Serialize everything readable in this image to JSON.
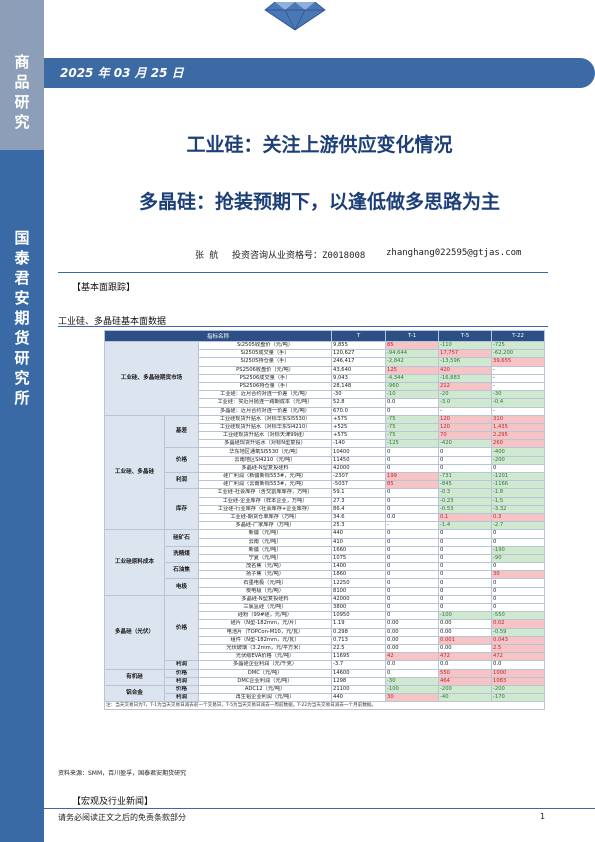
{
  "sidebar": {
    "top_label": "商品研究",
    "main_label": "国泰君安期货研究所"
  },
  "date": "2025 年 03 月 25 日",
  "titles": {
    "main": "工业硅：关注上游供应变化情况",
    "sub": "多晶硅：抢装预期下，以逢低做多思路为主"
  },
  "author": {
    "name": "张 航",
    "qualification": "投资咨询从业资格号：Z0018008",
    "email": "zhanghang022595@gtjas.com"
  },
  "sections": {
    "basics": "【基本面跟踪】",
    "table_caption": "工业硅、多晶硅基本面数据",
    "macro": "【宏观及行业新闻】"
  },
  "table": {
    "headers": [
      "指标名称",
      "T",
      "T-1",
      "T-5",
      "T-22"
    ],
    "rows": [
      {
        "g1": "工业硅、多晶硅期货市场",
        "g2": "",
        "name": "Si2505收盘价（元/吨）",
        "t": "9,855",
        "t1": "85",
        "t5": "-110",
        "t22": "-725"
      },
      {
        "name": "Si2505成交量（手）",
        "t": "120,627",
        "t1": "-94,644",
        "t5": "17,757",
        "t22": "-62,200"
      },
      {
        "name": "Si2505持仓量（手）",
        "t": "246,417",
        "t1": "-2,842",
        "t5": "-13,596",
        "t22": "39,655"
      },
      {
        "name": "PS2506收盘价（元/吨）",
        "t": "43,640",
        "t1": "125",
        "t5": "420",
        "t22": "-"
      },
      {
        "name": "PS2506成交量（手）",
        "t": "9,043",
        "t1": "-4,344",
        "t5": "-16,883",
        "t22": "-"
      },
      {
        "name": "PS2506持仓量（手）",
        "t": "28,148",
        "t1": "-960",
        "t5": "212",
        "t22": "-"
      },
      {
        "name": "工业硅：近月合约对连一价差（元/吨）",
        "t": "-30",
        "t1": "-10",
        "t5": "-20",
        "t22": "-30"
      },
      {
        "name": "工业硅：买近月抛连一跨期成本（元/吨）",
        "t": "52.8",
        "t1": "0.0",
        "t5": "-3.0",
        "t22": "-0.4"
      },
      {
        "name": "多晶硅：近月合约对连一价差（元/吨）",
        "t": "670.0",
        "t1": "0",
        "t5": "-",
        "t22": "-"
      },
      {
        "g1": "工业硅、多晶硅",
        "g2": "基差",
        "name": "工业硅现货升贴水（对标华东SI5530）",
        "t": "+575",
        "t1": "-75",
        "t5": "120",
        "t22": "310"
      },
      {
        "name": "工业硅现货升贴水（对标华东SI4210）",
        "t": "+525",
        "t1": "-75",
        "t5": "120",
        "t22": "1,435"
      },
      {
        "name": "工业硅现货升贴水（对标天津99硅）",
        "t": "+575",
        "t1": "-75",
        "t5": "70",
        "t22": "2,295"
      },
      {
        "name": "多晶硅现货升贴水（对标N型复投）",
        "t": "-140",
        "t1": "-125",
        "t5": "-420",
        "t22": "260"
      },
      {
        "g2": "价格",
        "name": "华东地区通氧SI5530（元/吨）",
        "t": "10400",
        "t1": "0",
        "t5": "0",
        "t22": "-400"
      },
      {
        "name": "云南地区SI4210（元/吨）",
        "t": "11450",
        "t1": "0",
        "t5": "0",
        "t22": "-200"
      },
      {
        "name": "多晶硅-N型复投硅料",
        "t": "42000",
        "t1": "0",
        "t5": "0",
        "t22": "0"
      },
      {
        "g2": "利润",
        "name": "硅厂利润（新疆新标553#，元/吨）",
        "t": "-2307",
        "t1": "199",
        "t5": "-731",
        "t22": "-1201"
      },
      {
        "name": "硅厂利润（云南新标553#，元/吨）",
        "t": "-5037",
        "t1": "85",
        "t5": "-845",
        "t22": "-1166"
      },
      {
        "g2": "库存",
        "name": "工业硅-社会库存（含交割库库存，万吨）",
        "t": "59.1",
        "t1": "0",
        "t5": "-0.3",
        "t22": "-1.8"
      },
      {
        "name": "工业硅-企业库存（样本企业，万吨）",
        "t": "27.3",
        "t1": "0",
        "t5": "-0.23",
        "t22": "-1.5"
      },
      {
        "name": "工业硅-行业库存（社会库存+企业库存）",
        "t": "86.4",
        "t1": "0",
        "t5": "-0.53",
        "t22": "-3.32"
      },
      {
        "name": "工业硅-期货仓单库存（万吨）",
        "t": "34.6",
        "t1": "0.0",
        "t5": "0.1",
        "t22": "0.3"
      },
      {
        "name": "多晶硅-厂家库存（万吨）",
        "t": "25.3",
        "t1": "-",
        "t5": "-1.4",
        "t22": "-2.7"
      },
      {
        "g1": "工业硅原料成本",
        "g2": "硅矿石",
        "name": "新疆（元/吨）",
        "t": "440",
        "t1": "0",
        "t5": "0",
        "t22": "0"
      },
      {
        "name": "云南（元/吨）",
        "t": "410",
        "t1": "0",
        "t5": "0",
        "t22": "0"
      },
      {
        "g2": "洗精煤",
        "name": "新疆（元/吨）",
        "t": "1660",
        "t1": "0",
        "t5": "0",
        "t22": "-190"
      },
      {
        "name": "宁夏（元/吨）",
        "t": "1075",
        "t1": "0",
        "t5": "0",
        "t22": "-90"
      },
      {
        "g2": "石油焦",
        "name": "茂名焦（元/吨）",
        "t": "1400",
        "t1": "0",
        "t5": "0",
        "t22": "0"
      },
      {
        "name": "扬子焦（元/吨）",
        "t": "1860",
        "t1": "0",
        "t5": "0",
        "t22": "30"
      },
      {
        "g2": "电极",
        "name": "石墨电极（元/吨）",
        "t": "12250",
        "t1": "0",
        "t5": "0",
        "t22": "0"
      },
      {
        "name": "炭电极（元/吨）",
        "t": "8100",
        "t1": "0",
        "t5": "0",
        "t22": "0"
      },
      {
        "g1": "多晶硅（光伏）",
        "g2": "价格",
        "name": "多晶硅-N型复投硅料",
        "t": "42000",
        "t1": "0",
        "t5": "0",
        "t22": "0"
      },
      {
        "name": "三氯氢硅（元/吨）",
        "t": "3800",
        "t1": "0",
        "t5": "0",
        "t22": "0"
      },
      {
        "name": "硅粉（99#硅，元/吨）",
        "t": "10950",
        "t1": "0",
        "t5": "-100",
        "t22": "-550"
      },
      {
        "name": "硅片（N型-182mm，元/片）",
        "t": "1.19",
        "t1": "0.00",
        "t5": "0.00",
        "t22": "0.02"
      },
      {
        "name": "电池片（TOPCon-M10，元/瓦）",
        "t": "0.298",
        "t1": "0.00",
        "t5": "0.00",
        "t22": "-0.59"
      },
      {
        "name": "组件（N型-182mm，元/瓦）",
        "t": "0.713",
        "t1": "0.00",
        "t5": "0.001",
        "t22": "0.043"
      },
      {
        "name": "光伏玻璃（3.2mm，元/平方米）",
        "t": "22.5",
        "t1": "0.00",
        "t5": "0.00",
        "t22": "2.5"
      },
      {
        "name": "光伏级EVA价格（元/吨）",
        "t": "11695",
        "t1": "42",
        "t5": "472",
        "t22": "472"
      },
      {
        "g2": "利润",
        "name": "多晶硅企业利润（元/千克）",
        "t": "-3.7",
        "t1": "0.0",
        "t5": "0.0",
        "t22": "0.0"
      },
      {
        "g1": "有机硅",
        "g2": "价格",
        "name": "DMC（元/吨）",
        "t": "14600",
        "t1": "0",
        "t5": "550",
        "t22": "1000"
      },
      {
        "g2": "利润",
        "name": "DMC企业利润（元/吨）",
        "t": "1298",
        "t1": "-30",
        "t5": "464",
        "t22": "1083"
      },
      {
        "g1": "铝合金",
        "g2": "价格",
        "name": "ADC12（元/吨）",
        "t": "21100",
        "t1": "-100",
        "t5": "-200",
        "t22": "-200"
      },
      {
        "g2": "利润",
        "name": "再生铝企业利润（元/吨）",
        "t": "440",
        "t1": "30",
        "t5": "-40",
        "t22": "-170"
      }
    ],
    "note": "注：当天交易日为T，T-1为当天交易日减去前一个交易日，T-5为当天交易日减去一周前数据，T-22为当天交易日减去一个月前数据。"
  },
  "source": "资料来源：SMM，百川盈孚，国泰君安期货研究",
  "footer": {
    "disclaimer": "请务必阅读正文之后的免责条款部分",
    "page": "1"
  },
  "colors": {
    "brand_blue": "#3a6aa6",
    "header_blue": "#2c4f86",
    "positive": "#c0262c",
    "negative": "#2e7d32"
  }
}
